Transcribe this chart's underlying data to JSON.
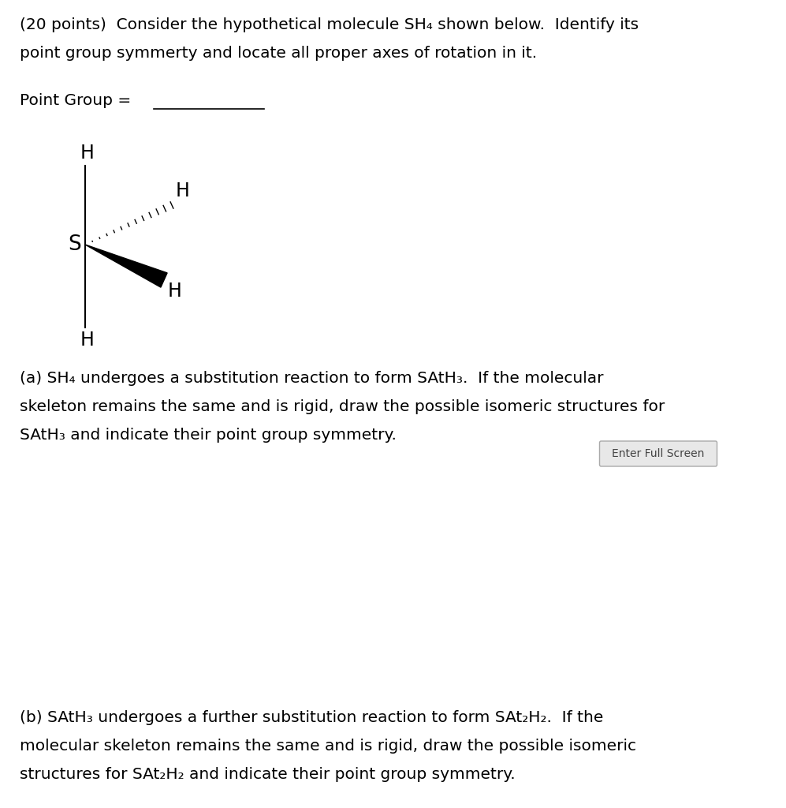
{
  "title_line1": "(20 points)  Consider the hypothetical molecule SH₄ shown below.  Identify its",
  "title_line2": "point group symmerty and locate all proper axes of rotation in it.",
  "point_group_label": "Point Group = ",
  "part_a_line1": "(a) SH₄ undergoes a substitution reaction to form SAtH₃.  If the molecular",
  "part_a_line2": "skeleton remains the same and is rigid, draw the possible isomeric structures for",
  "part_a_line3": "SAtH₃ and indicate their point group symmetry.",
  "enter_full_screen": "Enter Full Screen",
  "part_b_line1": "(b) SAtH₃ undergoes a further substitution reaction to form SAt₂H₂.  If the",
  "part_b_line2": "molecular skeleton remains the same and is rigid, draw the possible isomeric",
  "part_b_line3": "structures for SAt₂H₂ and indicate their point group symmetry.",
  "bg_color": "#ffffff",
  "text_color": "#000000",
  "font_size_main": 14.5,
  "font_size_molecule": 17
}
